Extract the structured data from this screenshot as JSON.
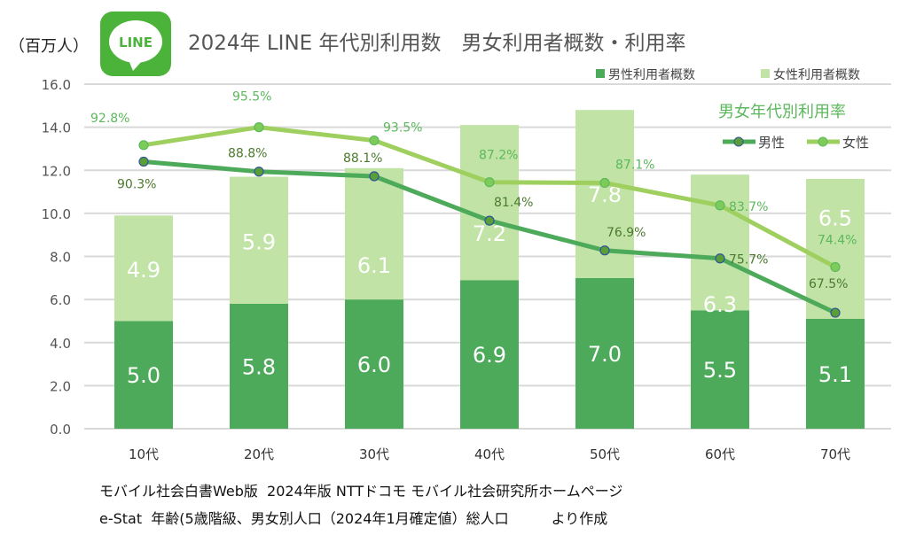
{
  "chart_data": {
    "type": "bar",
    "title": "2024年 LINE 年代別利用数　男女利用者概数・利用率",
    "logo_text": "LINE",
    "ylabel": "（百万人）",
    "ylim": [
      0,
      16
    ],
    "yticks": [
      "0.0",
      "2.0",
      "4.0",
      "6.0",
      "8.0",
      "10.0",
      "12.0",
      "14.0",
      "16.0"
    ],
    "categories": [
      "10代",
      "20代",
      "30代",
      "40代",
      "50代",
      "60代",
      "70代"
    ],
    "stacked": true,
    "grid": true,
    "legend_position": "top-right",
    "series": [
      {
        "name": "男性利用者概数",
        "color": "#4daa5a",
        "values": [
          5.0,
          5.8,
          6.0,
          6.9,
          7.0,
          5.5,
          5.1
        ],
        "labels": [
          "5.0",
          "5.8",
          "6.0",
          "6.9",
          "7.0",
          "5.5",
          "5.1"
        ]
      },
      {
        "name": "女性利用者概数",
        "color": "#c1e3a6",
        "values": [
          4.9,
          5.9,
          6.1,
          7.2,
          7.8,
          6.3,
          6.5
        ],
        "labels": [
          "4.9",
          "5.9",
          "6.1",
          "7.2",
          "7.8",
          "6.3",
          "6.5"
        ]
      }
    ],
    "rate_chart": {
      "title": "男女年代別利用率",
      "type": "line",
      "unit": "%",
      "secondary_range": [
        50,
        102
      ],
      "series": [
        {
          "name": "男性",
          "color": "#4daa5a",
          "label_color": "#4b7a2e",
          "values": [
            90.3,
            88.8,
            88.1,
            81.4,
            76.9,
            75.7,
            67.5
          ],
          "labels": [
            "90.3%",
            "88.8%",
            "88.1%",
            "81.4%",
            "76.9%",
            "75.7%",
            "67.5%"
          ]
        },
        {
          "name": "女性",
          "color": "#9fd05f",
          "label_color": "#5cb85c",
          "values": [
            92.8,
            95.5,
            93.5,
            87.2,
            87.1,
            83.7,
            74.4
          ],
          "labels": [
            "92.8%",
            "95.5%",
            "93.5%",
            "87.2%",
            "87.1%",
            "83.7%",
            "74.4%"
          ]
        }
      ]
    }
  },
  "source": {
    "line1": "モバイル社会白書Web版  2024年版 NTTドコモ モバイル社会研究所ホームページ",
    "line2": "e-Stat  年齢(5歳階級、男女別人口（2024年1月確定値）総人口　　　より作成"
  }
}
